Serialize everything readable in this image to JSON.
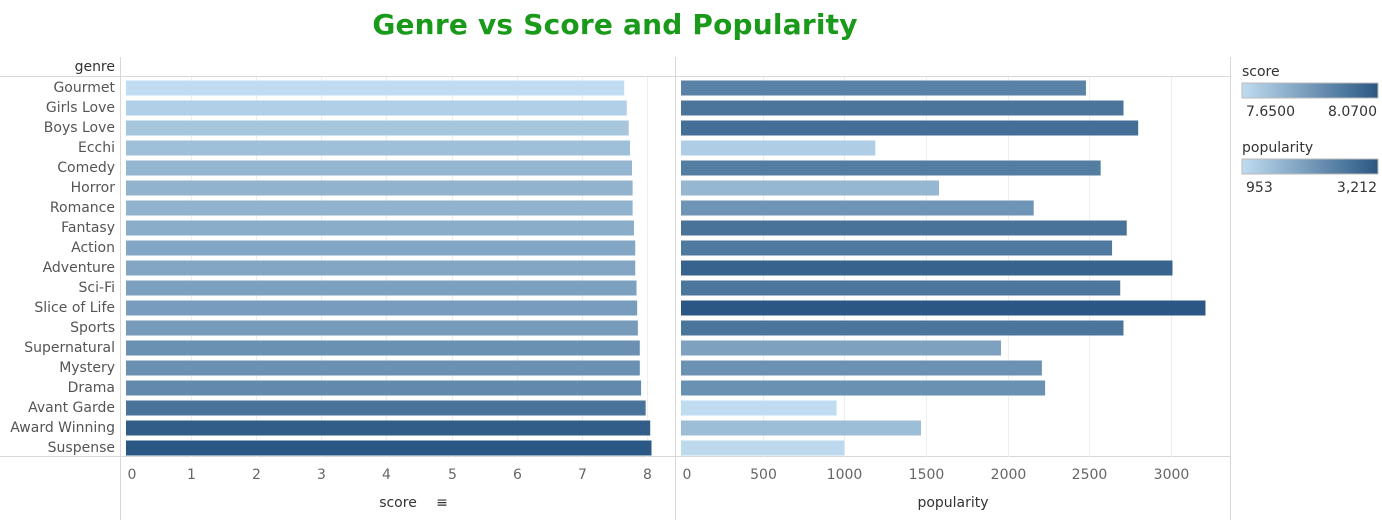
{
  "title": "Genre vs Score and Popularity",
  "chart_data": {
    "type": "bar",
    "orientation": "horizontal",
    "row_header": "genre",
    "categories": [
      "Gourmet",
      "Girls Love",
      "Boys Love",
      "Ecchi",
      "Comedy",
      "Horror",
      "Romance",
      "Fantasy",
      "Action",
      "Adventure",
      "Sci-Fi",
      "Slice of Life",
      "Sports",
      "Supernatural",
      "Mystery",
      "Drama",
      "Avant Garde",
      "Award Winning",
      "Suspense"
    ],
    "panels": [
      {
        "measure": "score",
        "xlabel": "score",
        "sort_indicator": "≡",
        "xlim": [
          0,
          8.4
        ],
        "ticks": [
          "0",
          "1",
          "2",
          "3",
          "4",
          "5",
          "6",
          "7",
          "8"
        ],
        "tick_values": [
          0,
          1,
          2,
          3,
          4,
          5,
          6,
          7,
          8
        ],
        "values": [
          7.65,
          7.69,
          7.72,
          7.74,
          7.77,
          7.78,
          7.78,
          7.8,
          7.82,
          7.82,
          7.84,
          7.85,
          7.86,
          7.89,
          7.89,
          7.91,
          7.98,
          8.05,
          8.07
        ]
      },
      {
        "measure": "popularity",
        "xlabel": "popularity",
        "xlim": [
          0,
          3350
        ],
        "ticks": [
          "0",
          "500",
          "1000",
          "1500",
          "2000",
          "2500",
          "3000"
        ],
        "tick_values": [
          0,
          500,
          1000,
          1500,
          2000,
          2500,
          3000
        ],
        "values": [
          2480,
          2710,
          2800,
          1190,
          2570,
          1580,
          2160,
          2730,
          2640,
          3010,
          2690,
          3212,
          2710,
          1960,
          2210,
          2230,
          953,
          1470,
          1000
        ]
      }
    ],
    "legends": [
      {
        "title": "score",
        "min_label": "7.6500",
        "max_label": "8.0700",
        "min": 7.65,
        "max": 8.07
      },
      {
        "title": "popularity",
        "min_label": "953",
        "max_label": "3,212",
        "min": 953,
        "max": 3212
      }
    ],
    "color_low": "#bfdcf0",
    "color_high": "#2a5783",
    "grid": true
  }
}
